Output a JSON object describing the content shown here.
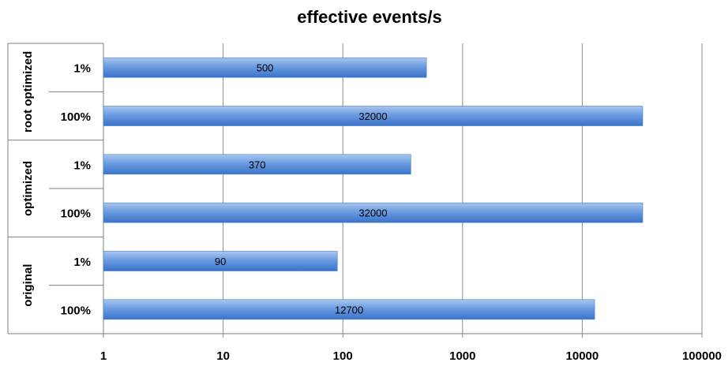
{
  "chart_data": {
    "type": "bar",
    "orientation": "horizontal",
    "title": "effective events/s",
    "xscale": "log",
    "xlim": [
      1,
      100000
    ],
    "xticks": [
      "1",
      "10",
      "100",
      "1000",
      "10000",
      "100000"
    ],
    "groups": [
      {
        "name": "root optimized",
        "bars": [
          {
            "label": "1%",
            "value": 500,
            "data_label": "500"
          },
          {
            "label": "100%",
            "value": 32000,
            "data_label": "32000"
          }
        ]
      },
      {
        "name": "optimized",
        "bars": [
          {
            "label": "1%",
            "value": 370,
            "data_label": "370"
          },
          {
            "label": "100%",
            "value": 32000,
            "data_label": "32000"
          }
        ]
      },
      {
        "name": "original",
        "bars": [
          {
            "label": "1%",
            "value": 90,
            "data_label": "90"
          },
          {
            "label": "100%",
            "value": 12700,
            "data_label": "12700"
          }
        ]
      }
    ],
    "grid": true,
    "legend": "none",
    "colors": {
      "bar_top": "#a9c6ef",
      "bar_mid": "#5b8fd9",
      "bar_bottom": "#3a73c9",
      "grid": "#8c8c8c"
    }
  }
}
